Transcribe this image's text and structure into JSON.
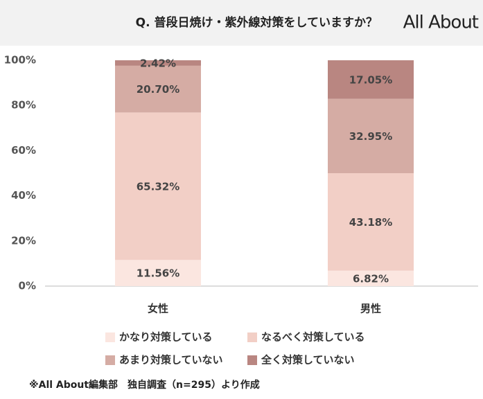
{
  "title": "Q. 普段日焼け・紫外線対策をしていますか？",
  "logo": "All About",
  "chart_data": {
    "type": "stacked-bar",
    "categories": [
      "女性",
      "男性"
    ],
    "series": [
      {
        "name": "かなり対策している",
        "color": "#fbe6e0",
        "values": [
          11.56,
          6.82
        ],
        "value_labels": [
          "11.56%",
          "6.82%"
        ]
      },
      {
        "name": "なるべく対策している",
        "color": "#f2cfc6",
        "values": [
          65.32,
          43.18
        ],
        "value_labels": [
          "65.32%",
          "43.18%"
        ]
      },
      {
        "name": "あまり対策していない",
        "color": "#d5aca4",
        "values": [
          20.7,
          32.95
        ],
        "value_labels": [
          "20.70%",
          "32.95%"
        ]
      },
      {
        "name": "全く対策していない",
        "color": "#b98681",
        "values": [
          2.42,
          17.05
        ],
        "value_labels": [
          "2.42%",
          "17.05%"
        ]
      }
    ],
    "ylim": [
      0,
      100
    ],
    "yticks": [
      {
        "value": 0,
        "label": "0%"
      },
      {
        "value": 20,
        "label": "20%"
      },
      {
        "value": 40,
        "label": "40%"
      },
      {
        "value": 60,
        "label": "60%"
      },
      {
        "value": 80,
        "label": "80%"
      },
      {
        "value": 100,
        "label": "100%"
      }
    ]
  },
  "footnote": "※All About編集部　独自調査（n=295）より作成"
}
